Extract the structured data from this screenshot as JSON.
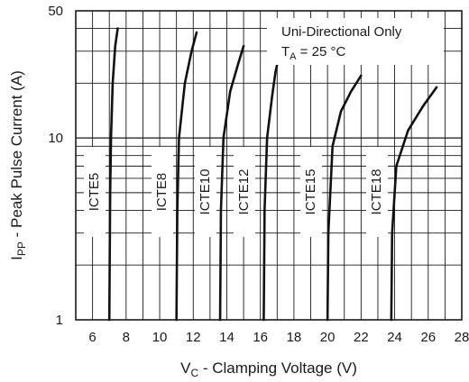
{
  "chart_data": {
    "type": "line",
    "xlabel_main": "V",
    "xlabel_sub": "C",
    "xlabel_rest": " - Clamping Voltage (V)",
    "ylabel_main": "I",
    "ylabel_sub": "PP",
    "ylabel_rest": " - Peak Pulse Current (A)",
    "xlim": [
      5,
      28
    ],
    "ylim": [
      1,
      50
    ],
    "yscale": "log",
    "grid": true,
    "x_ticks": [
      6,
      8,
      10,
      12,
      14,
      16,
      18,
      20,
      22,
      24,
      26,
      28
    ],
    "y_ticks": [
      1,
      10,
      50
    ],
    "annotation_line1": "Uni-Directional Only",
    "annotation_line2_main": "T",
    "annotation_line2_sub": "A",
    "annotation_line2_rest": " = 25 °C",
    "series": [
      {
        "name": "ICTE5",
        "x": [
          7.0,
          7.05,
          7.1,
          7.2,
          7.35,
          7.5
        ],
        "y": [
          1,
          5,
          10,
          20,
          32,
          40
        ]
      },
      {
        "name": "ICTE8",
        "x": [
          11.0,
          11.05,
          11.15,
          11.5,
          11.9,
          12.2
        ],
        "y": [
          1,
          4,
          10,
          20,
          30,
          38
        ]
      },
      {
        "name": "ICTE10",
        "x": [
          13.6,
          13.65,
          13.8,
          14.2,
          14.7,
          15.0
        ],
        "y": [
          1,
          4,
          10,
          18,
          26,
          32
        ]
      },
      {
        "name": "ICTE12",
        "x": [
          16.2,
          16.25,
          16.4,
          16.7,
          16.9,
          17.1
        ],
        "y": [
          1,
          4,
          10,
          17,
          23,
          28
        ]
      },
      {
        "name": "ICTE15",
        "x": [
          20.0,
          20.05,
          20.3,
          20.8,
          21.4,
          22.0
        ],
        "y": [
          1,
          3,
          9,
          14,
          18,
          22
        ]
      },
      {
        "name": "ICTE18",
        "x": [
          23.8,
          23.85,
          24.1,
          24.8,
          25.7,
          26.5
        ],
        "y": [
          1,
          3,
          7,
          11,
          15,
          19
        ]
      }
    ]
  }
}
